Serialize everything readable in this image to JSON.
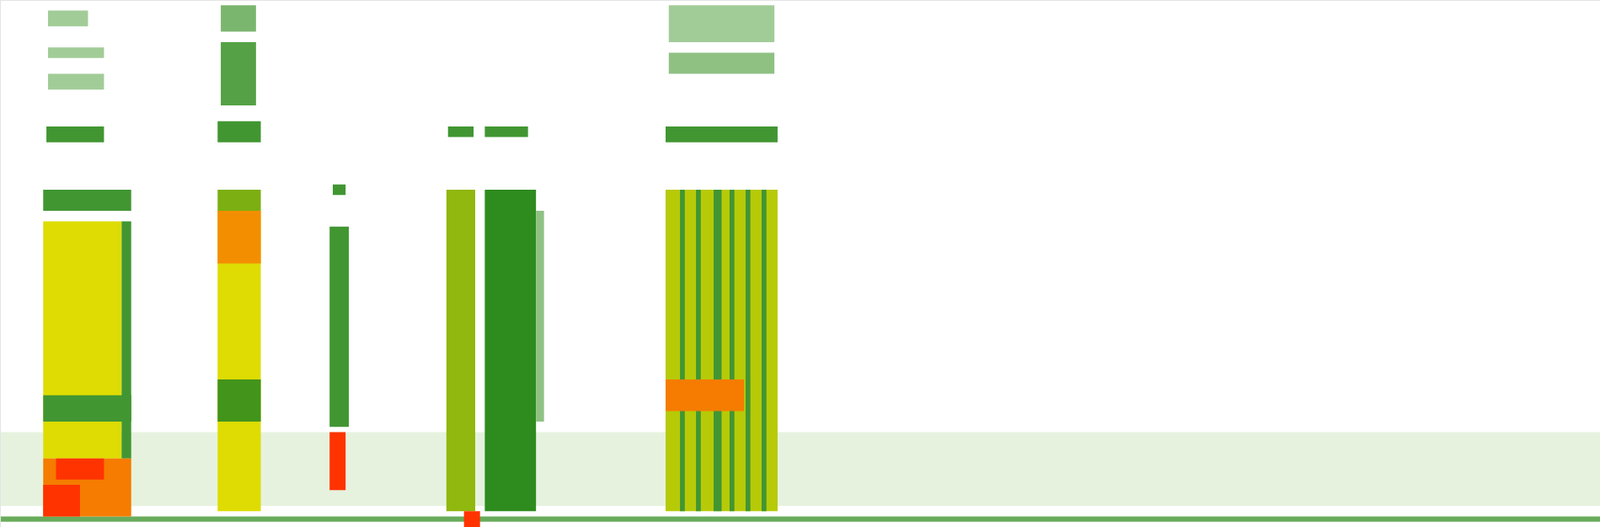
{
  "chart_data": {
    "type": "heatmap",
    "xlim": [
      0,
      100
    ],
    "ylim": [
      0,
      100
    ],
    "tick_labels": false,
    "cells": [
      [
        0,
        100,
        4,
        18,
        0.15
      ],
      [
        0,
        100,
        1,
        2,
        0.8
      ],
      [
        2.7,
        7.6,
        13,
        58,
        2
      ],
      [
        7.6,
        8.2,
        13,
        58,
        1
      ],
      [
        2.7,
        8.2,
        20,
        25,
        1
      ],
      [
        2.7,
        8.2,
        2,
        13,
        2.6
      ],
      [
        2.7,
        5,
        2,
        8,
        3
      ],
      [
        3.5,
        6.5,
        9,
        13,
        3
      ],
      [
        2.7,
        8.2,
        60,
        64,
        1
      ],
      [
        2.9,
        6.5,
        73,
        76,
        1
      ],
      [
        3.0,
        6.5,
        83,
        86,
        0.5
      ],
      [
        3.0,
        6.5,
        89,
        91,
        0.5
      ],
      [
        3.0,
        5.5,
        95,
        98,
        0.5
      ],
      [
        13.6,
        16.3,
        3,
        60,
        2
      ],
      [
        13.6,
        16.3,
        50,
        60,
        2.5
      ],
      [
        13.6,
        16.3,
        20,
        28,
        1.2
      ],
      [
        13.6,
        16.3,
        60,
        64,
        1.5
      ],
      [
        13.6,
        16.3,
        73,
        77,
        1
      ],
      [
        13.8,
        16.0,
        80,
        92,
        0.9
      ],
      [
        13.8,
        16.0,
        94,
        99,
        0.7
      ],
      [
        20.6,
        21.8,
        19,
        57,
        1
      ],
      [
        20.6,
        21.6,
        7,
        18,
        3
      ],
      [
        20.8,
        21.6,
        63,
        65,
        1
      ],
      [
        27.9,
        29.7,
        3,
        64,
        1.6
      ],
      [
        28,
        29.6,
        74,
        76,
        1
      ],
      [
        29,
        30,
        0,
        3,
        3
      ],
      [
        30.3,
        33.5,
        3,
        64,
        1.1
      ],
      [
        33.5,
        34,
        20,
        60,
        0.6
      ],
      [
        30.3,
        33,
        74,
        76,
        1
      ],
      [
        41.6,
        48.6,
        3,
        64,
        1.8
      ],
      [
        42.5,
        42.8,
        3,
        64,
        1
      ],
      [
        43.5,
        43.8,
        3,
        64,
        1
      ],
      [
        44.6,
        45.1,
        3,
        64,
        1
      ],
      [
        45.6,
        45.9,
        3,
        64,
        1
      ],
      [
        46.6,
        46.9,
        3,
        64,
        1
      ],
      [
        47.6,
        47.9,
        3,
        64,
        1
      ],
      [
        41.6,
        46.5,
        22,
        28,
        2.6
      ],
      [
        41.6,
        48.6,
        73,
        76,
        1
      ],
      [
        41.8,
        48.4,
        86,
        90,
        0.6
      ],
      [
        41.8,
        48.4,
        92,
        99,
        0.5
      ]
    ]
  }
}
